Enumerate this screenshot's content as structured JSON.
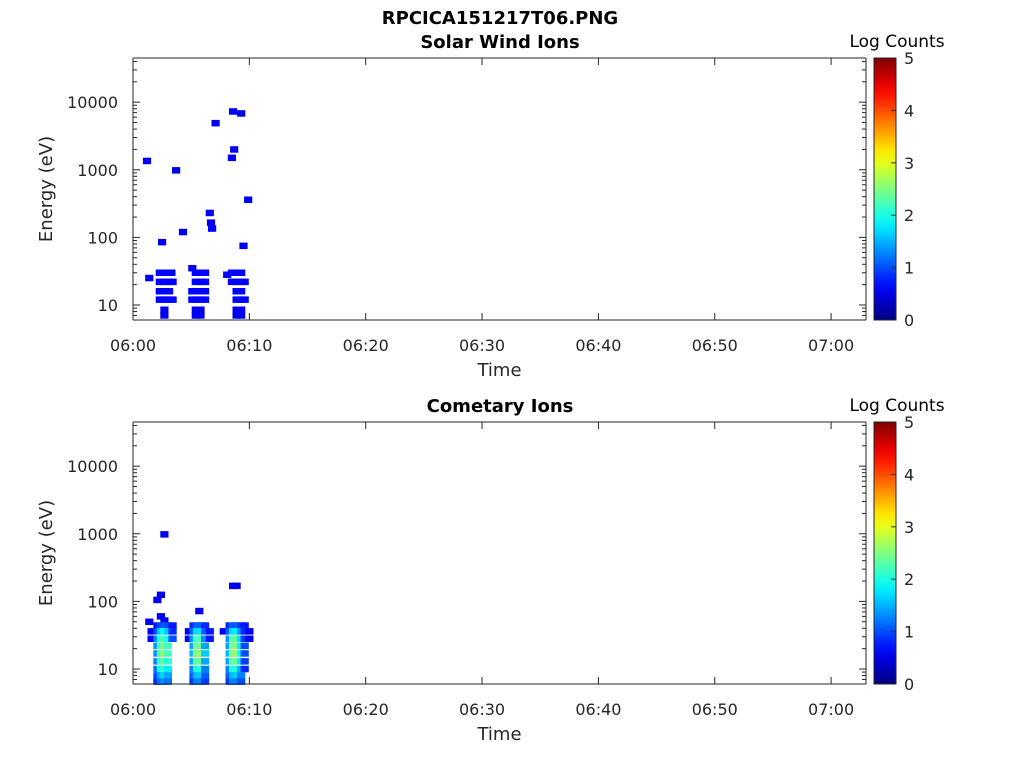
{
  "figure_title": "RPCICA151217T06.PNG",
  "colormap": "jet",
  "colors": {
    "axis": "#262626",
    "background": "#ffffff",
    "low": "#00008f",
    "high": "#800000"
  },
  "chart_data": [
    {
      "type": "heatmap",
      "title": "Solar Wind Ions",
      "xlabel": "Time",
      "ylabel": "Energy (eV)",
      "yscale": "log",
      "ylim": [
        6,
        45000
      ],
      "xlim": [
        "06:00",
        "07:03"
      ],
      "x_ticks": [
        "06:00",
        "06:10",
        "06:20",
        "06:30",
        "06:40",
        "06:50",
        "07:00"
      ],
      "y_ticks": [
        {
          "value": 10,
          "label": "10"
        },
        {
          "value": 100,
          "label": "100"
        },
        {
          "value": 1000,
          "label": "1000"
        },
        {
          "value": 10000,
          "label": "10000"
        }
      ],
      "colorbar": {
        "label": "Log Counts",
        "min": 0,
        "max": 5,
        "ticks": [
          "0",
          "1",
          "2",
          "3",
          "4",
          "5"
        ]
      },
      "cells": [
        {
          "t": 1.2,
          "e": 1350,
          "v": 0.0
        },
        {
          "t": 3.7,
          "e": 980,
          "v": 0.0
        },
        {
          "t": 7.1,
          "e": 4900,
          "v": 0.0
        },
        {
          "t": 8.6,
          "e": 7300,
          "v": 0.0
        },
        {
          "t": 9.3,
          "e": 6800,
          "v": 0.0
        },
        {
          "t": 8.7,
          "e": 2000,
          "v": 0.0
        },
        {
          "t": 8.5,
          "e": 1500,
          "v": 0.0
        },
        {
          "t": 9.9,
          "e": 360,
          "v": 0.0
        },
        {
          "t": 4.3,
          "e": 120,
          "v": 0.0
        },
        {
          "t": 2.5,
          "e": 85,
          "v": 0.0
        },
        {
          "t": 6.6,
          "e": 230,
          "v": 0.0
        },
        {
          "t": 6.7,
          "e": 165,
          "v": 0.0
        },
        {
          "t": 6.8,
          "e": 135,
          "v": 0.0
        },
        {
          "t": 9.5,
          "e": 75,
          "v": 0.0
        },
        {
          "t": 1.4,
          "e": 25,
          "v": 0.0
        },
        {
          "t": 2.3,
          "e": 30,
          "v": 0.1
        },
        {
          "t": 2.7,
          "e": 30,
          "v": 0.1
        },
        {
          "t": 3.1,
          "e": 30,
          "v": 0.1
        },
        {
          "t": 2.3,
          "e": 22,
          "v": 0.1
        },
        {
          "t": 2.7,
          "e": 22,
          "v": 0.1
        },
        {
          "t": 3.1,
          "e": 22,
          "v": 0.1
        },
        {
          "t": 3.4,
          "e": 22,
          "v": 0.1
        },
        {
          "t": 2.3,
          "e": 16,
          "v": 0.1
        },
        {
          "t": 2.7,
          "e": 16,
          "v": 0.1
        },
        {
          "t": 3.1,
          "e": 16,
          "v": 0.1
        },
        {
          "t": 2.3,
          "e": 12,
          "v": 0.1
        },
        {
          "t": 2.7,
          "e": 12,
          "v": 0.1
        },
        {
          "t": 3.1,
          "e": 12,
          "v": 0.1
        },
        {
          "t": 3.4,
          "e": 12,
          "v": 0.1
        },
        {
          "t": 2.7,
          "e": 8.5,
          "v": 0.0
        },
        {
          "t": 2.7,
          "e": 7,
          "v": 0.0
        },
        {
          "t": 3.3,
          "e": 30,
          "v": 0.0
        },
        {
          "t": 5.1,
          "e": 35,
          "v": 0.0
        },
        {
          "t": 5.4,
          "e": 30,
          "v": 0.1
        },
        {
          "t": 5.8,
          "e": 30,
          "v": 0.1
        },
        {
          "t": 6.2,
          "e": 30,
          "v": 0.1
        },
        {
          "t": 5.4,
          "e": 22,
          "v": 0.1
        },
        {
          "t": 5.8,
          "e": 22,
          "v": 0.1
        },
        {
          "t": 6.2,
          "e": 22,
          "v": 0.1
        },
        {
          "t": 5.1,
          "e": 16,
          "v": 0.1
        },
        {
          "t": 5.4,
          "e": 16,
          "v": 0.1
        },
        {
          "t": 5.8,
          "e": 16,
          "v": 0.1
        },
        {
          "t": 6.2,
          "e": 16,
          "v": 0.1
        },
        {
          "t": 5.1,
          "e": 12,
          "v": 0.1
        },
        {
          "t": 5.4,
          "e": 12,
          "v": 0.1
        },
        {
          "t": 5.8,
          "e": 12,
          "v": 0.1
        },
        {
          "t": 6.2,
          "e": 12,
          "v": 0.1
        },
        {
          "t": 5.4,
          "e": 8.5,
          "v": 0.0
        },
        {
          "t": 5.8,
          "e": 8.5,
          "v": 0.0
        },
        {
          "t": 5.4,
          "e": 7,
          "v": 0.0
        },
        {
          "t": 5.8,
          "e": 7,
          "v": 0.0
        },
        {
          "t": 8.1,
          "e": 28,
          "v": 0.0
        },
        {
          "t": 8.5,
          "e": 30,
          "v": 0.1
        },
        {
          "t": 8.9,
          "e": 30,
          "v": 0.1
        },
        {
          "t": 9.3,
          "e": 30,
          "v": 0.1
        },
        {
          "t": 8.5,
          "e": 22,
          "v": 0.1
        },
        {
          "t": 8.9,
          "e": 22,
          "v": 0.1
        },
        {
          "t": 9.3,
          "e": 22,
          "v": 0.1
        },
        {
          "t": 9.6,
          "e": 22,
          "v": 0.1
        },
        {
          "t": 8.9,
          "e": 16,
          "v": 0.1
        },
        {
          "t": 9.3,
          "e": 16,
          "v": 0.1
        },
        {
          "t": 8.9,
          "e": 12,
          "v": 0.1
        },
        {
          "t": 9.3,
          "e": 12,
          "v": 0.1
        },
        {
          "t": 9.6,
          "e": 12,
          "v": 0.1
        },
        {
          "t": 8.9,
          "e": 8.5,
          "v": 0.0
        },
        {
          "t": 9.3,
          "e": 8.5,
          "v": 0.0
        },
        {
          "t": 8.9,
          "e": 7,
          "v": 0.0
        },
        {
          "t": 9.3,
          "e": 7,
          "v": 0.0
        }
      ]
    },
    {
      "type": "heatmap",
      "title": "Cometary Ions",
      "xlabel": "Time",
      "ylabel": "Energy (eV)",
      "yscale": "log",
      "ylim": [
        6,
        45000
      ],
      "xlim": [
        "06:00",
        "07:03"
      ],
      "x_ticks": [
        "06:00",
        "06:10",
        "06:20",
        "06:30",
        "06:40",
        "06:50",
        "07:00"
      ],
      "y_ticks": [
        {
          "value": 10,
          "label": "10"
        },
        {
          "value": 100,
          "label": "100"
        },
        {
          "value": 1000,
          "label": "1000"
        },
        {
          "value": 10000,
          "label": "10000"
        }
      ],
      "colorbar": {
        "label": "Log Counts",
        "min": 0,
        "max": 5,
        "ticks": [
          "0",
          "1",
          "2",
          "3",
          "4",
          "5"
        ]
      },
      "cells": [
        {
          "t": 2.7,
          "e": 980,
          "v": 0.0
        },
        {
          "t": 2.1,
          "e": 105,
          "v": 0.0
        },
        {
          "t": 2.4,
          "e": 125,
          "v": 0.0
        },
        {
          "t": 8.6,
          "e": 170,
          "v": 0.0
        },
        {
          "t": 8.9,
          "e": 170,
          "v": 0.0
        },
        {
          "t": 5.7,
          "e": 72,
          "v": 0.0
        },
        {
          "t": 1.4,
          "e": 50,
          "v": 0.0
        },
        {
          "t": 2.4,
          "e": 60,
          "v": 0.0
        },
        {
          "t": 2.7,
          "e": 52,
          "v": 0.0
        },
        {
          "t": 1.6,
          "e": 36,
          "v": 0.0
        },
        {
          "t": 1.6,
          "e": 28,
          "v": 0.0
        },
        {
          "t": 2.1,
          "e": 44,
          "v": 0.2
        },
        {
          "t": 2.4,
          "e": 44,
          "v": 0.5
        },
        {
          "t": 2.7,
          "e": 44,
          "v": 0.6
        },
        {
          "t": 3.0,
          "e": 44,
          "v": 0.5
        },
        {
          "t": 3.4,
          "e": 44,
          "v": 0.2
        },
        {
          "t": 2.1,
          "e": 36,
          "v": 0.5
        },
        {
          "t": 2.4,
          "e": 36,
          "v": 1.2
        },
        {
          "t": 2.7,
          "e": 36,
          "v": 1.5
        },
        {
          "t": 3.0,
          "e": 36,
          "v": 1.2
        },
        {
          "t": 3.4,
          "e": 36,
          "v": 0.3
        },
        {
          "t": 2.1,
          "e": 28,
          "v": 0.8
        },
        {
          "t": 2.4,
          "e": 28,
          "v": 1.6
        },
        {
          "t": 2.7,
          "e": 28,
          "v": 2.0
        },
        {
          "t": 3.0,
          "e": 28,
          "v": 1.6
        },
        {
          "t": 3.4,
          "e": 28,
          "v": 0.5
        },
        {
          "t": 2.1,
          "e": 22,
          "v": 0.9
        },
        {
          "t": 2.4,
          "e": 22,
          "v": 1.8
        },
        {
          "t": 2.7,
          "e": 22,
          "v": 2.2
        },
        {
          "t": 3.0,
          "e": 22,
          "v": 1.8
        },
        {
          "t": 2.1,
          "e": 17,
          "v": 0.9
        },
        {
          "t": 2.4,
          "e": 17,
          "v": 1.9
        },
        {
          "t": 2.7,
          "e": 17,
          "v": 2.3
        },
        {
          "t": 3.0,
          "e": 17,
          "v": 1.9
        },
        {
          "t": 2.1,
          "e": 13,
          "v": 0.8
        },
        {
          "t": 2.4,
          "e": 13,
          "v": 1.7
        },
        {
          "t": 2.7,
          "e": 13,
          "v": 2.1
        },
        {
          "t": 3.0,
          "e": 13,
          "v": 1.7
        },
        {
          "t": 2.1,
          "e": 10,
          "v": 0.7
        },
        {
          "t": 2.4,
          "e": 10,
          "v": 1.5
        },
        {
          "t": 2.7,
          "e": 10,
          "v": 1.8
        },
        {
          "t": 3.0,
          "e": 10,
          "v": 1.4
        },
        {
          "t": 2.1,
          "e": 8,
          "v": 0.5
        },
        {
          "t": 2.4,
          "e": 8,
          "v": 1.0
        },
        {
          "t": 2.7,
          "e": 8,
          "v": 1.3
        },
        {
          "t": 3.0,
          "e": 8,
          "v": 1.0
        },
        {
          "t": 2.1,
          "e": 6.5,
          "v": 0.3
        },
        {
          "t": 2.4,
          "e": 6.5,
          "v": 0.7
        },
        {
          "t": 2.7,
          "e": 6.5,
          "v": 0.9
        },
        {
          "t": 3.0,
          "e": 6.5,
          "v": 0.7
        },
        {
          "t": 4.8,
          "e": 36,
          "v": 0.0
        },
        {
          "t": 4.8,
          "e": 28,
          "v": 0.0
        },
        {
          "t": 5.2,
          "e": 44,
          "v": 0.3
        },
        {
          "t": 5.5,
          "e": 44,
          "v": 0.6
        },
        {
          "t": 5.8,
          "e": 44,
          "v": 0.6
        },
        {
          "t": 6.2,
          "e": 44,
          "v": 0.3
        },
        {
          "t": 5.2,
          "e": 36,
          "v": 0.6
        },
        {
          "t": 5.5,
          "e": 36,
          "v": 1.3
        },
        {
          "t": 5.8,
          "e": 36,
          "v": 1.3
        },
        {
          "t": 6.2,
          "e": 36,
          "v": 0.6
        },
        {
          "t": 6.6,
          "e": 36,
          "v": 0.2
        },
        {
          "t": 5.2,
          "e": 28,
          "v": 0.9
        },
        {
          "t": 5.5,
          "e": 28,
          "v": 1.8
        },
        {
          "t": 5.8,
          "e": 28,
          "v": 1.9
        },
        {
          "t": 6.2,
          "e": 28,
          "v": 0.9
        },
        {
          "t": 6.6,
          "e": 28,
          "v": 0.2
        },
        {
          "t": 5.2,
          "e": 22,
          "v": 1.0
        },
        {
          "t": 5.5,
          "e": 22,
          "v": 2.0
        },
        {
          "t": 5.8,
          "e": 22,
          "v": 2.1
        },
        {
          "t": 6.2,
          "e": 22,
          "v": 1.0
        },
        {
          "t": 5.2,
          "e": 17,
          "v": 1.1
        },
        {
          "t": 5.5,
          "e": 17,
          "v": 2.2
        },
        {
          "t": 5.8,
          "e": 17,
          "v": 2.3
        },
        {
          "t": 6.2,
          "e": 17,
          "v": 1.2
        },
        {
          "t": 5.2,
          "e": 13,
          "v": 1.0
        },
        {
          "t": 5.5,
          "e": 13,
          "v": 2.0
        },
        {
          "t": 5.8,
          "e": 13,
          "v": 2.1
        },
        {
          "t": 6.2,
          "e": 13,
          "v": 1.0
        },
        {
          "t": 5.2,
          "e": 10,
          "v": 0.8
        },
        {
          "t": 5.5,
          "e": 10,
          "v": 1.6
        },
        {
          "t": 5.8,
          "e": 10,
          "v": 1.7
        },
        {
          "t": 6.2,
          "e": 10,
          "v": 0.8
        },
        {
          "t": 5.2,
          "e": 8,
          "v": 0.6
        },
        {
          "t": 5.5,
          "e": 8,
          "v": 1.1
        },
        {
          "t": 5.8,
          "e": 8,
          "v": 1.2
        },
        {
          "t": 6.2,
          "e": 8,
          "v": 0.6
        },
        {
          "t": 5.2,
          "e": 6.5,
          "v": 0.4
        },
        {
          "t": 5.5,
          "e": 6.5,
          "v": 0.8
        },
        {
          "t": 5.8,
          "e": 6.5,
          "v": 0.8
        },
        {
          "t": 6.2,
          "e": 6.5,
          "v": 0.4
        },
        {
          "t": 7.8,
          "e": 36,
          "v": 0.0
        },
        {
          "t": 8.3,
          "e": 44,
          "v": 0.3
        },
        {
          "t": 8.6,
          "e": 44,
          "v": 0.6
        },
        {
          "t": 8.9,
          "e": 44,
          "v": 0.6
        },
        {
          "t": 9.3,
          "e": 44,
          "v": 0.4
        },
        {
          "t": 9.6,
          "e": 44,
          "v": 0.2
        },
        {
          "t": 8.3,
          "e": 36,
          "v": 0.6
        },
        {
          "t": 8.6,
          "e": 36,
          "v": 1.3
        },
        {
          "t": 8.9,
          "e": 36,
          "v": 1.4
        },
        {
          "t": 9.3,
          "e": 36,
          "v": 0.9
        },
        {
          "t": 9.6,
          "e": 36,
          "v": 0.3
        },
        {
          "t": 10.0,
          "e": 36,
          "v": 0.0
        },
        {
          "t": 8.3,
          "e": 28,
          "v": 0.9
        },
        {
          "t": 8.6,
          "e": 28,
          "v": 1.9
        },
        {
          "t": 8.9,
          "e": 28,
          "v": 2.0
        },
        {
          "t": 9.3,
          "e": 28,
          "v": 1.3
        },
        {
          "t": 9.6,
          "e": 28,
          "v": 0.4
        },
        {
          "t": 10.0,
          "e": 28,
          "v": 0.0
        },
        {
          "t": 8.3,
          "e": 22,
          "v": 1.0
        },
        {
          "t": 8.6,
          "e": 22,
          "v": 2.1
        },
        {
          "t": 8.9,
          "e": 22,
          "v": 2.2
        },
        {
          "t": 9.3,
          "e": 22,
          "v": 1.4
        },
        {
          "t": 9.6,
          "e": 22,
          "v": 0.5
        },
        {
          "t": 8.3,
          "e": 17,
          "v": 1.1
        },
        {
          "t": 8.6,
          "e": 17,
          "v": 2.2
        },
        {
          "t": 8.9,
          "e": 17,
          "v": 2.3
        },
        {
          "t": 9.3,
          "e": 17,
          "v": 1.5
        },
        {
          "t": 9.6,
          "e": 17,
          "v": 0.5
        },
        {
          "t": 8.3,
          "e": 13,
          "v": 1.0
        },
        {
          "t": 8.6,
          "e": 13,
          "v": 2.0
        },
        {
          "t": 8.9,
          "e": 13,
          "v": 2.1
        },
        {
          "t": 9.3,
          "e": 13,
          "v": 1.4
        },
        {
          "t": 9.6,
          "e": 13,
          "v": 0.4
        },
        {
          "t": 8.3,
          "e": 10,
          "v": 0.8
        },
        {
          "t": 8.6,
          "e": 10,
          "v": 1.6
        },
        {
          "t": 8.9,
          "e": 10,
          "v": 1.7
        },
        {
          "t": 9.3,
          "e": 10,
          "v": 1.1
        },
        {
          "t": 9.6,
          "e": 10,
          "v": 0.3
        },
        {
          "t": 8.3,
          "e": 8,
          "v": 0.6
        },
        {
          "t": 8.6,
          "e": 8,
          "v": 1.1
        },
        {
          "t": 8.9,
          "e": 8,
          "v": 1.2
        },
        {
          "t": 9.3,
          "e": 8,
          "v": 0.8
        },
        {
          "t": 8.3,
          "e": 6.5,
          "v": 0.4
        },
        {
          "t": 8.6,
          "e": 6.5,
          "v": 0.8
        },
        {
          "t": 8.9,
          "e": 6.5,
          "v": 0.8
        },
        {
          "t": 9.3,
          "e": 6.5,
          "v": 0.5
        }
      ]
    }
  ]
}
